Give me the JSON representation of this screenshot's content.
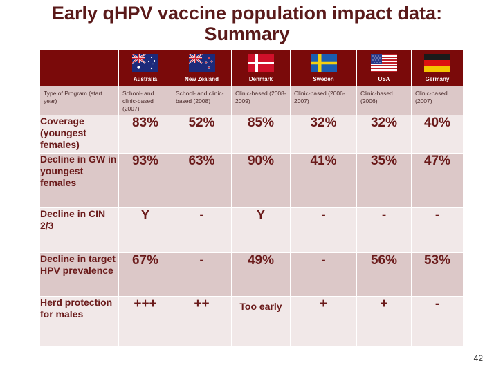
{
  "title_line1": "Early qHPV vaccine population impact data:",
  "title_line2": "Summary",
  "slide_number": "42",
  "columns": [
    "Australia",
    "New Zealand",
    "Denmark",
    "Sweden",
    "USA",
    "Germany"
  ],
  "flags": [
    "australia-flag-icon",
    "new-zealand-flag-icon",
    "denmark-flag-icon",
    "sweden-flag-icon",
    "usa-flag-icon",
    "germany-flag-icon"
  ],
  "program_row": {
    "label": "Type of Program (start year)",
    "values": [
      "School- and clinic-based (2007)",
      "School- and clinic-based (2008)",
      "Clinic-based (2008-2009)",
      "Clinic-based (2006-2007)",
      "Clinic-based (2006)",
      "Clinic-based (2007)"
    ]
  },
  "rows": [
    {
      "label": "Coverage (youngest females)",
      "values": [
        "83%",
        "52%",
        "85%",
        "32%",
        "32%",
        "40%"
      ]
    },
    {
      "label": "Decline in GW in youngest females",
      "values": [
        "93%",
        "63%",
        "90%",
        "41%",
        "35%",
        "47%"
      ]
    },
    {
      "label": "Decline in CIN 2/3",
      "values": [
        "Y",
        "-",
        "Y",
        "-",
        "-",
        "-"
      ]
    },
    {
      "label": "Decline in target HPV prevalence",
      "values": [
        "67%",
        "-",
        "49%",
        "-",
        "56%",
        "53%"
      ]
    },
    {
      "label": "Herd protection for males",
      "values": [
        "+++",
        "++",
        "Too early",
        "+",
        "+",
        "-"
      ]
    }
  ],
  "colors": {
    "title": "#5a1a1a",
    "header_bg": "#7a0a0a",
    "row_light": "#f1e8e8",
    "row_dark": "#dcc8c8",
    "text": "#6a1a1a"
  }
}
